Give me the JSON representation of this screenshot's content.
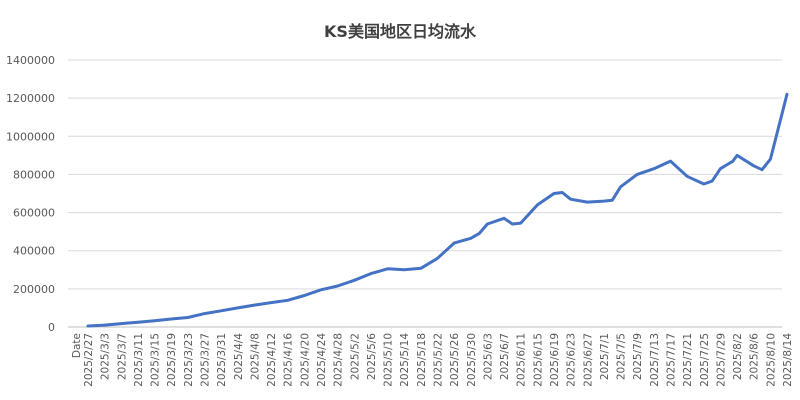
{
  "chart_data": {
    "type": "line",
    "title": "KS美国地区日均流水",
    "xlabel": "Date",
    "ylabel": "",
    "ylim": [
      0,
      1400000
    ],
    "y_ticks": [
      0,
      200000,
      400000,
      600000,
      800000,
      1000000,
      1200000,
      1400000
    ],
    "y_tick_labels": [
      "0",
      "200000",
      "400000",
      "600000",
      "800000",
      "1000000",
      "1200000",
      "1400000"
    ],
    "grid": true,
    "legend": "none",
    "x_tick_labels": [
      "2025/2/27",
      "2025/3/3",
      "2025/3/7",
      "2025/3/11",
      "2025/3/15",
      "2025/3/19",
      "2025/3/23",
      "2025/3/27",
      "2025/3/31",
      "2025/4/4",
      "2025/4/8",
      "2025/4/12",
      "2025/4/16",
      "2025/4/20",
      "2025/4/24",
      "2025/4/28",
      "2025/5/2",
      "2025/5/6",
      "2025/5/10",
      "2025/5/14",
      "2025/5/18",
      "2025/5/22",
      "2025/5/26",
      "2025/5/30",
      "2025/6/3",
      "2025/6/7",
      "2025/6/11",
      "2025/6/15",
      "2025/6/19",
      "2025/6/23",
      "2025/6/27",
      "2025/7/1",
      "2025/7/5",
      "2025/7/9",
      "2025/7/13",
      "2025/7/17",
      "2025/7/21",
      "2025/7/25",
      "2025/7/29",
      "2025/8/2",
      "2025/8/6",
      "2025/8/10",
      "2025/8/14"
    ],
    "series": [
      {
        "name": "",
        "color": "#4472c4",
        "x": [
          "2025/2/27",
          "2025/3/3",
          "2025/3/7",
          "2025/3/11",
          "2025/3/15",
          "2025/3/19",
          "2025/3/23",
          "2025/3/27",
          "2025/3/31",
          "2025/4/4",
          "2025/4/8",
          "2025/4/12",
          "2025/4/16",
          "2025/4/20",
          "2025/4/24",
          "2025/4/28",
          "2025/5/2",
          "2025/5/6",
          "2025/5/10",
          "2025/5/14",
          "2025/5/18",
          "2025/5/22",
          "2025/5/26",
          "2025/5/30",
          "2025/6/1",
          "2025/6/3",
          "2025/6/7",
          "2025/6/9",
          "2025/6/11",
          "2025/6/15",
          "2025/6/19",
          "2025/6/21",
          "2025/6/23",
          "2025/6/27",
          "2025/7/1",
          "2025/7/3",
          "2025/7/5",
          "2025/7/9",
          "2025/7/13",
          "2025/7/17",
          "2025/7/21",
          "2025/7/25",
          "2025/7/27",
          "2025/7/29",
          "2025/8/1",
          "2025/8/2",
          "2025/8/6",
          "2025/8/8",
          "2025/8/10",
          "2025/8/12",
          "2025/8/14"
        ],
        "values": [
          5000,
          10000,
          18000,
          25000,
          33000,
          42000,
          50000,
          70000,
          85000,
          100000,
          115000,
          128000,
          140000,
          165000,
          195000,
          215000,
          245000,
          280000,
          305000,
          300000,
          308000,
          360000,
          440000,
          465000,
          490000,
          540000,
          570000,
          540000,
          545000,
          640000,
          700000,
          705000,
          670000,
          655000,
          660000,
          665000,
          735000,
          800000,
          830000,
          870000,
          790000,
          750000,
          765000,
          830000,
          870000,
          900000,
          845000,
          825000,
          880000,
          1050000,
          1220000
        ]
      }
    ]
  }
}
